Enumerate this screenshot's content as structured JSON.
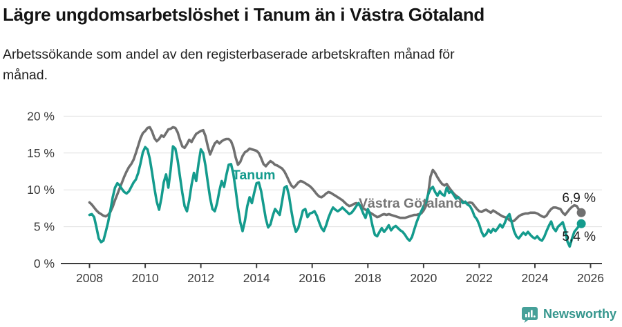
{
  "header": {
    "title": "Lägre ungdomsarbetslöshet i Tanum än i Västra Götaland",
    "subtitle_line1": "Arbetssökande som andel av den registerbaserade arbetskraften månad för",
    "subtitle_line2": "månad."
  },
  "footer": {
    "brand": "Newsworthy",
    "brand_color": "#35968d",
    "logo_icon": "newsworthy-speech-bubble-bar-chart-icon",
    "logo_icon_color": "#46a099"
  },
  "chart_data": {
    "type": "line",
    "title": "Lägre ungdomsarbetslöshet i Tanum än i Västra Götaland",
    "subtitle": "Arbetssökande som andel av den registerbaserade arbetskraften månad för månad.",
    "x_unit": "monthly, January 2008 – September 2025",
    "x_start_year": 2008,
    "points_per_year": 12,
    "xlim": [
      2007.1,
      2026.4
    ],
    "ylim": [
      0,
      20
    ],
    "grid": "horizontal",
    "y_ticks": [
      0,
      5,
      10,
      15,
      20
    ],
    "y_tick_labels": [
      "0 %",
      "5 %",
      "10 %",
      "15 %",
      "20 %"
    ],
    "x_ticks": [
      2008,
      2010,
      2012,
      2014,
      2016,
      2018,
      2020,
      2022,
      2024,
      2026
    ],
    "x_tick_labels": [
      "2008",
      "2010",
      "2012",
      "2014",
      "2016",
      "2018",
      "2020",
      "2022",
      "2024",
      "2026"
    ],
    "legend_position": "inline-labels",
    "series": [
      {
        "name": "Västra Götaland",
        "color": "#707070",
        "end_label": "6,9 %",
        "end_value": 6.9,
        "values": [
          8.3,
          8.0,
          7.6,
          7.2,
          6.9,
          6.7,
          6.5,
          6.4,
          6.6,
          7.0,
          7.7,
          8.6,
          9.4,
          10.2,
          11.0,
          11.8,
          12.5,
          13.1,
          13.5,
          14.1,
          15.0,
          16.0,
          17.0,
          17.7,
          18.0,
          18.4,
          18.5,
          17.9,
          17.0,
          16.6,
          16.9,
          17.4,
          17.2,
          17.7,
          18.2,
          18.3,
          18.5,
          18.4,
          17.8,
          16.8,
          15.9,
          15.7,
          16.2,
          16.8,
          16.5,
          17.1,
          17.6,
          17.8,
          18.0,
          18.1,
          17.3,
          15.9,
          14.8,
          15.6,
          16.3,
          16.6,
          16.3,
          16.6,
          16.8,
          16.9,
          16.9,
          16.6,
          15.8,
          14.4,
          13.4,
          13.8,
          14.6,
          15.1,
          15.3,
          15.6,
          15.5,
          15.4,
          15.3,
          15.0,
          14.3,
          13.5,
          13.2,
          13.6,
          13.9,
          13.7,
          13.4,
          13.3,
          13.1,
          12.9,
          12.5,
          11.9,
          11.2,
          10.6,
          10.3,
          10.6,
          11.0,
          11.2,
          11.1,
          10.9,
          10.7,
          10.5,
          10.2,
          9.8,
          9.4,
          9.1,
          9.0,
          9.2,
          9.5,
          9.7,
          9.6,
          9.4,
          9.2,
          9.0,
          8.8,
          8.6,
          8.3,
          8.0,
          7.8,
          7.9,
          8.1,
          8.2,
          8.0,
          7.8,
          7.5,
          7.3,
          7.1,
          6.9,
          6.7,
          6.5,
          6.3,
          6.4,
          6.6,
          6.7,
          6.6,
          6.7,
          6.6,
          6.5,
          6.4,
          6.3,
          6.2,
          6.2,
          6.2,
          6.3,
          6.4,
          6.5,
          6.6,
          6.6,
          6.7,
          6.8,
          7.2,
          7.8,
          9.5,
          11.8,
          12.7,
          12.3,
          11.7,
          11.2,
          10.8,
          10.6,
          10.8,
          10.3,
          9.9,
          9.5,
          9.2,
          9.0,
          8.7,
          8.4,
          8.2,
          8.2,
          8.3,
          8.2,
          7.8,
          7.4,
          7.1,
          7.0,
          7.2,
          7.3,
          7.1,
          6.9,
          7.2,
          7.0,
          6.8,
          6.6,
          6.4,
          6.3,
          6.2,
          5.9,
          5.7,
          5.8,
          6.1,
          6.4,
          6.6,
          6.7,
          6.8,
          6.8,
          6.9,
          6.9,
          6.9,
          6.8,
          6.6,
          6.4,
          6.3,
          6.5,
          7.0,
          7.4,
          7.6,
          7.6,
          7.5,
          7.4,
          6.9,
          6.6,
          7.0,
          7.4,
          7.7,
          7.9,
          7.8,
          7.3,
          6.9
        ]
      },
      {
        "name": "Tanum",
        "color": "#149b8d",
        "end_label": "5,4 %",
        "end_value": 5.4,
        "values": [
          6.6,
          6.7,
          6.3,
          4.9,
          3.4,
          2.9,
          3.1,
          4.3,
          5.6,
          7.2,
          9.0,
          10.3,
          10.9,
          10.6,
          10.1,
          9.7,
          9.5,
          9.8,
          10.4,
          11.0,
          11.4,
          12.3,
          13.6,
          15.1,
          15.8,
          15.5,
          14.2,
          12.3,
          10.2,
          8.4,
          7.3,
          8.9,
          11.0,
          12.1,
          10.3,
          12.8,
          15.9,
          15.6,
          14.0,
          11.8,
          9.6,
          7.8,
          7.1,
          8.6,
          10.7,
          12.3,
          11.2,
          13.6,
          15.5,
          15.0,
          13.3,
          11.0,
          8.9,
          7.4,
          7.1,
          8.2,
          9.9,
          11.2,
          10.4,
          12.0,
          13.4,
          13.5,
          12.2,
          10.0,
          7.6,
          5.6,
          4.4,
          5.8,
          7.8,
          9.0,
          8.2,
          9.6,
          10.9,
          11.0,
          9.8,
          7.9,
          6.1,
          4.9,
          5.3,
          6.5,
          7.4,
          7.0,
          6.6,
          8.4,
          10.3,
          10.5,
          9.2,
          7.2,
          5.4,
          4.3,
          4.8,
          6.0,
          7.2,
          7.4,
          6.3,
          6.8,
          6.9,
          7.1,
          6.5,
          5.6,
          4.8,
          4.4,
          5.2,
          6.2,
          7.0,
          7.6,
          7.3,
          7.1,
          7.3,
          7.6,
          7.3,
          7.0,
          6.7,
          6.9,
          7.3,
          7.8,
          8.2,
          7.6,
          6.8,
          6.2,
          7.4,
          6.6,
          5.1,
          3.9,
          3.7,
          4.3,
          4.8,
          4.3,
          4.7,
          5.2,
          4.5,
          4.9,
          5.1,
          4.8,
          4.5,
          4.3,
          3.9,
          3.4,
          3.1,
          3.6,
          4.6,
          5.6,
          6.4,
          7.1,
          7.8,
          8.3,
          9.4,
          10.1,
          10.4,
          9.7,
          9.2,
          9.8,
          9.4,
          9.2,
          10.3,
          9.6,
          9.8,
          9.3,
          8.8,
          9.0,
          8.6,
          8.2,
          8.4,
          8.0,
          7.8,
          7.2,
          6.4,
          6.0,
          5.3,
          4.3,
          3.7,
          4.0,
          4.6,
          4.2,
          4.7,
          4.4,
          4.8,
          5.3,
          4.9,
          5.5,
          6.3,
          6.7,
          5.6,
          4.4,
          3.7,
          3.4,
          3.8,
          4.2,
          3.9,
          4.3,
          3.9,
          3.6,
          3.4,
          3.7,
          3.3,
          3.1,
          3.6,
          4.4,
          5.1,
          5.7,
          4.8,
          4.4,
          5.0,
          5.3,
          5.6,
          4.6,
          3.0,
          2.3,
          3.4,
          4.3,
          4.7,
          5.1,
          5.4
        ]
      }
    ]
  }
}
